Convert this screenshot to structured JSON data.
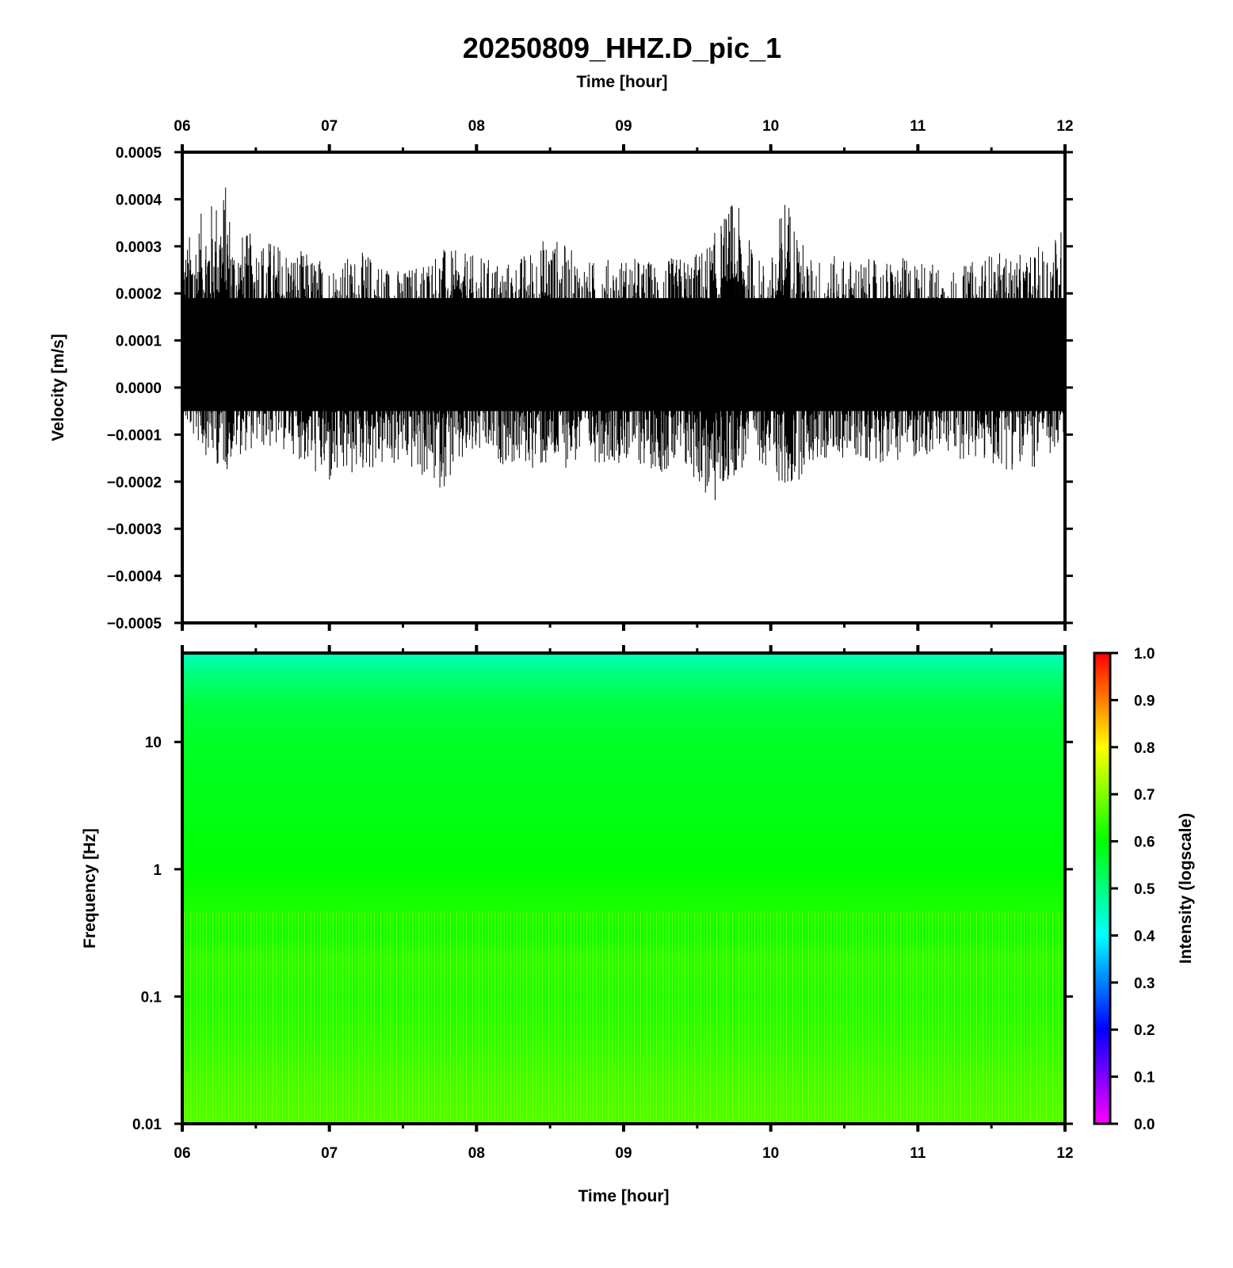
{
  "chart_data": [
    {
      "type": "line",
      "title": "20250809_HHZ.D_pic_1",
      "top_xlabel": "Time [hour]",
      "ylabel": "Velocity [m/s]",
      "xlim": [
        6,
        12
      ],
      "ylim": [
        -0.0005,
        0.0005
      ],
      "x_ticks": [
        "06",
        "07",
        "08",
        "09",
        "10",
        "11",
        "12"
      ],
      "y_ticks": [
        "0.0005",
        "0.0004",
        "0.0003",
        "0.0002",
        "0.0001",
        "0.0000",
        "−0.0001",
        "−0.0002",
        "−0.0003",
        "−0.0004",
        "−0.0005"
      ],
      "trace_color": "#000000",
      "trace_envelope": {
        "x": [
          6.0,
          6.1,
          6.2,
          6.3,
          6.35,
          6.5,
          6.75,
          7.0,
          7.25,
          7.5,
          7.75,
          8.0,
          8.25,
          8.5,
          8.75,
          9.0,
          9.25,
          9.5,
          9.6,
          9.75,
          9.9,
          10.0,
          10.1,
          10.25,
          10.5,
          10.75,
          11.0,
          11.25,
          11.5,
          11.75,
          12.0
        ],
        "upper": [
          0.0003,
          0.00036,
          0.0004,
          0.00044,
          0.00033,
          0.00033,
          0.0003,
          0.00027,
          0.00029,
          0.00025,
          0.0003,
          0.00028,
          0.00027,
          0.00033,
          0.00027,
          0.00028,
          0.00027,
          0.00029,
          0.00032,
          0.00041,
          0.00028,
          0.00027,
          0.00043,
          0.00028,
          0.00028,
          0.00027,
          0.00028,
          0.00025,
          0.00029,
          0.00028,
          0.00035
        ],
        "lower": [
          -8e-05,
          -0.00012,
          -0.00016,
          -0.00018,
          -0.00015,
          -0.00013,
          -0.00014,
          -0.00022,
          -0.00018,
          -0.00017,
          -0.00022,
          -0.00015,
          -0.00017,
          -0.00018,
          -0.00016,
          -0.00016,
          -0.00018,
          -0.0002,
          -0.00027,
          -0.00019,
          -0.00016,
          -0.00017,
          -0.00024,
          -0.00017,
          -0.00015,
          -0.00016,
          -0.00015,
          -0.00015,
          -0.00017,
          -0.00018,
          -0.00014
        ]
      }
    },
    {
      "type": "heatmap",
      "xlabel": "Time [hour]",
      "ylabel": "Frequency [Hz]",
      "xlim": [
        6,
        12
      ],
      "ylim": [
        0.01,
        50
      ],
      "y_scale": "log",
      "x_ticks": [
        "06",
        "07",
        "08",
        "09",
        "10",
        "11",
        "12"
      ],
      "y_ticks": [
        "10",
        "1",
        "0.1",
        "0.01"
      ],
      "colorbar_label": "Intensity (logscale)",
      "colorbar_range": [
        0.0,
        1.0
      ],
      "colorbar_ticks": [
        "1.0",
        "0.9",
        "0.8",
        "0.7",
        "0.6",
        "0.5",
        "0.4",
        "0.3",
        "0.2",
        "0.1",
        "0.0"
      ],
      "colormap": [
        "#ff00ff",
        "#0000ff",
        "#00ffff",
        "#00ff00",
        "#ffff00",
        "#ff0000"
      ],
      "intensity_profile": {
        "frequency_hz": [
          0.01,
          0.02,
          0.05,
          0.1,
          0.2,
          0.3,
          0.5,
          1,
          2,
          5,
          10,
          20,
          35,
          50
        ],
        "intensity": [
          0.66,
          0.65,
          0.63,
          0.62,
          0.63,
          0.61,
          0.62,
          0.6,
          0.59,
          0.58,
          0.57,
          0.55,
          0.5,
          0.45
        ]
      }
    }
  ]
}
